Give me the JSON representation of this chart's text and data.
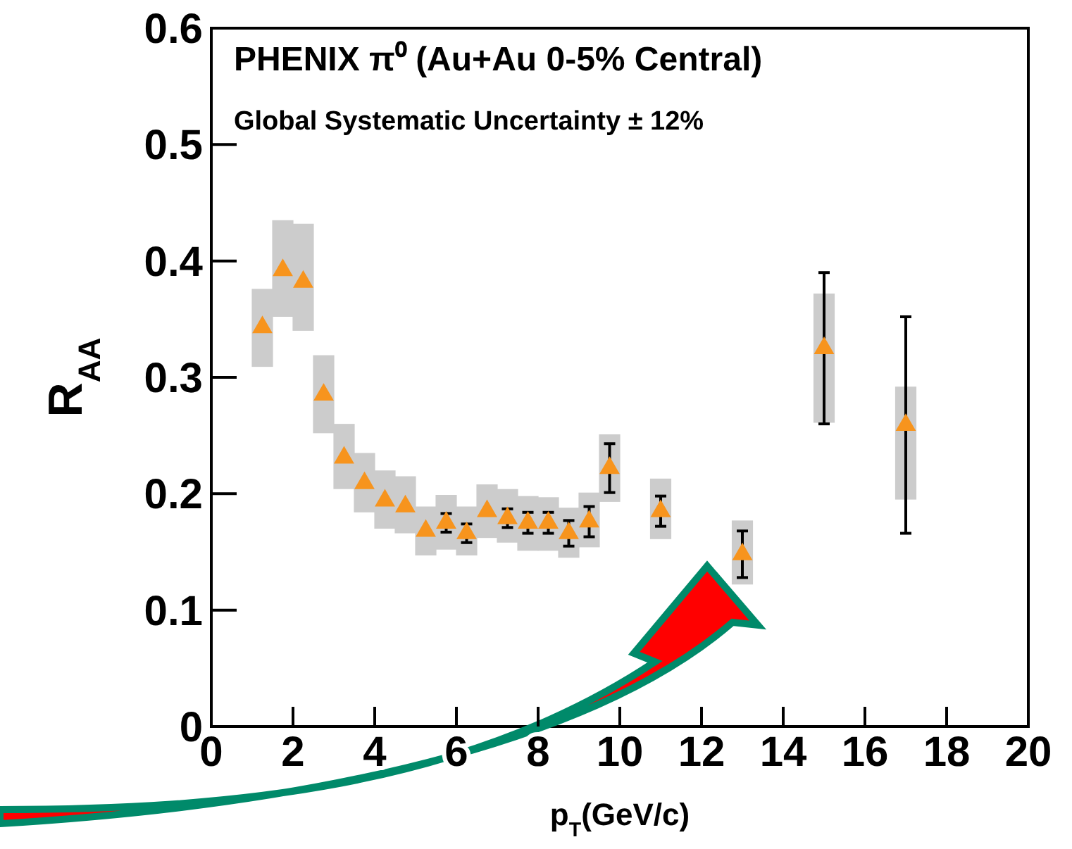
{
  "chart_data": {
    "type": "scatter",
    "xlabel": "p$_{T}$(GeV/c)",
    "ylabel": "R$_{AA}$",
    "annotations": [
      "PHENIX π⁰ (Au+Au 0-5% Central)",
      "Global Systematic Uncertainty ± 12%"
    ],
    "xlim": [
      0,
      20
    ],
    "xticks": [
      0,
      2,
      4,
      6,
      8,
      10,
      12,
      14,
      16,
      18,
      20
    ],
    "ylim": [
      0,
      0.6
    ],
    "yticks": [
      0,
      0.1,
      0.2,
      0.3,
      0.4,
      0.5,
      0.6
    ],
    "grid": false,
    "marker": "triangle",
    "series": [
      {
        "type": "bar",
        "color": "#cccccc",
        "x": [
          1.25,
          1.75,
          2.25,
          2.75,
          3.25,
          3.75,
          4.25,
          4.75,
          5.25,
          5.75,
          6.25,
          6.75,
          7.25,
          7.75,
          8.25,
          8.75,
          9.25,
          9.75,
          11,
          13,
          15,
          17
        ],
        "base": [
          0.309,
          0.352,
          0.34,
          0.252,
          0.204,
          0.184,
          0.17,
          0.166,
          0.147,
          0.152,
          0.147,
          0.162,
          0.158,
          0.151,
          0.151,
          0.145,
          0.154,
          0.193,
          0.161,
          0.122,
          0.261,
          0.195
        ],
        "values": [
          0.067,
          0.083,
          0.092,
          0.067,
          0.056,
          0.051,
          0.05,
          0.049,
          0.042,
          0.047,
          0.042,
          0.046,
          0.046,
          0.047,
          0.046,
          0.043,
          0.047,
          0.058,
          0.052,
          0.055,
          0.111,
          0.097
        ]
      },
      {
        "color": "#f7941d",
        "x": [
          1.25,
          1.75,
          2.25,
          2.75,
          3.25,
          3.75,
          4.25,
          4.75,
          5.25,
          5.75,
          6.25,
          6.75,
          7.25,
          7.75,
          8.25,
          8.75,
          9.25,
          9.75,
          11,
          13,
          15,
          17
        ],
        "values": [
          0.343,
          0.392,
          0.382,
          0.285,
          0.231,
          0.209,
          0.194,
          0.189,
          0.168,
          0.175,
          0.166,
          0.185,
          0.179,
          0.175,
          0.175,
          0.166,
          0.176,
          0.222,
          0.185,
          0.148,
          0.325,
          0.259
        ],
        "errors": [
          null,
          null,
          null,
          null,
          null,
          null,
          null,
          null,
          null,
          0.008,
          0.008,
          null,
          0.008,
          0.009,
          0.009,
          0.011,
          0.013,
          0.021,
          0.013,
          0.02,
          0.065,
          0.093
        ]
      }
    ]
  }
}
